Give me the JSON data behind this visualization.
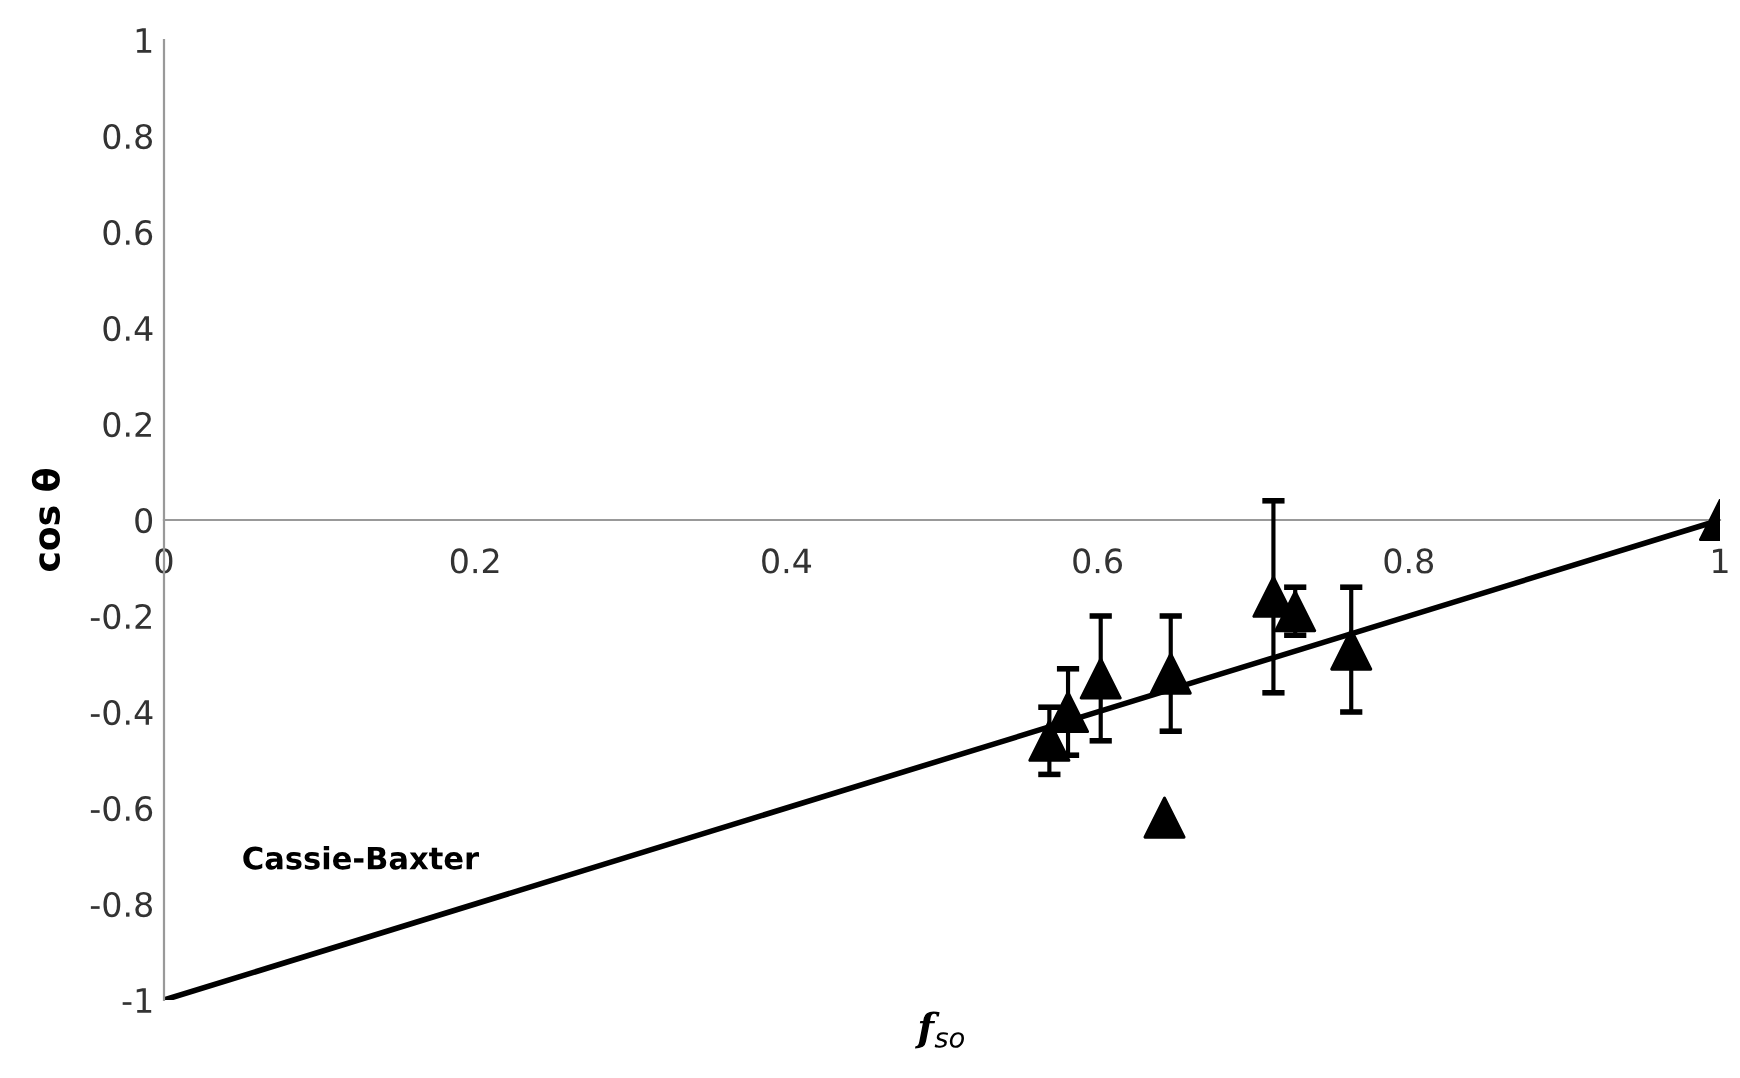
{
  "chart_data": {
    "type": "scatter",
    "xlabel": "f$_{so}$",
    "ylabel": "cos θ",
    "xlim": [
      0,
      1
    ],
    "ylim": [
      -1,
      1
    ],
    "xticks": [
      0,
      0.2,
      0.4,
      0.6,
      0.8,
      1
    ],
    "yticks": [
      -1,
      -0.8,
      -0.6,
      -0.4,
      -0.2,
      0,
      0.2,
      0.4,
      0.6,
      0.8,
      1
    ],
    "grid": false,
    "legend": false,
    "marker": "triangle",
    "series": [
      {
        "type": "line",
        "color": "#000000",
        "x": [
          0,
          1
        ],
        "values": [
          -1,
          0
        ],
        "marker": "none",
        "line_style": "solid"
      },
      {
        "color": "#000000",
        "x": [
          0.569,
          0.581,
          0.602,
          0.647,
          0.643,
          0.713,
          0.727,
          0.763,
          1
        ],
        "values": [
          -0.46,
          -0.4,
          -0.33,
          -0.32,
          -0.62,
          -0.16,
          -0.19,
          -0.27,
          0
        ],
        "errors": [
          0.07,
          0.09,
          0.13,
          0.12,
          null,
          0.2,
          0.05,
          0.13,
          null
        ]
      }
    ],
    "annotations": [
      "Cassie-Baxter"
    ]
  }
}
